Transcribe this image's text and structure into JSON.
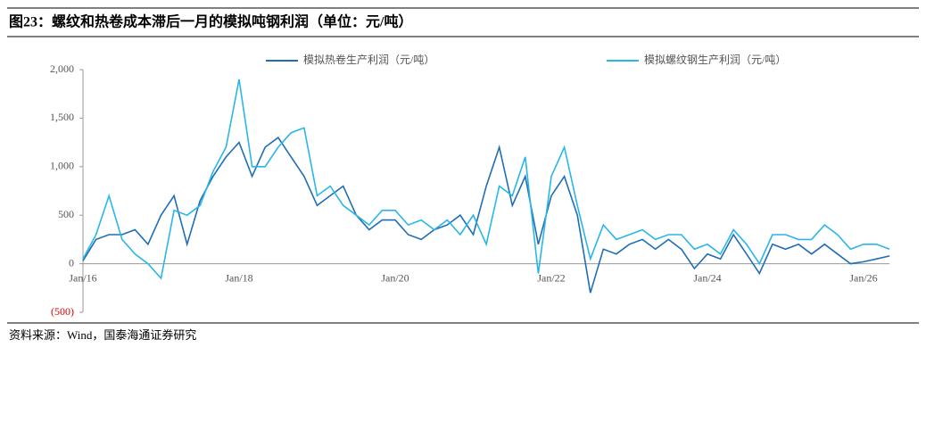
{
  "header": {
    "title": "图23：螺纹和热卷成本滞后一月的模拟吨钢利润（单位：元/吨）"
  },
  "chart_data": {
    "type": "line",
    "categories": [
      "Jan/16",
      null,
      null,
      null,
      null,
      null,
      null,
      null,
      null,
      null,
      null,
      null,
      "Jan/18",
      null,
      null,
      null,
      null,
      null,
      null,
      null,
      null,
      null,
      null,
      null,
      "Jan/20",
      null,
      null,
      null,
      null,
      null,
      null,
      null,
      null,
      null,
      null,
      null,
      "Jan/22",
      null,
      null,
      null,
      null,
      null,
      null,
      null,
      null,
      null,
      null,
      null,
      "Jan/24",
      null,
      null,
      null,
      null,
      null,
      null,
      null,
      null,
      null,
      null,
      null,
      "Jan/26",
      null,
      null
    ],
    "series": [
      {
        "name": "模拟热卷生产利润（元/吨）",
        "color": "#1f6eb5",
        "values": [
          30,
          250,
          300,
          300,
          350,
          200,
          500,
          700,
          200,
          650,
          900,
          1100,
          1250,
          900,
          1200,
          1300,
          1100,
          900,
          600,
          700,
          800,
          500,
          350,
          450,
          450,
          300,
          250,
          350,
          400,
          500,
          300,
          800,
          1200,
          600,
          900,
          200,
          700,
          900,
          500,
          -300,
          150,
          100,
          200,
          250,
          150,
          250,
          150,
          -50,
          100,
          50,
          300,
          100,
          -100,
          200,
          150,
          200,
          100,
          200,
          100,
          0,
          20,
          50,
          80
        ]
      },
      {
        "name": "模拟螺纹钢生产利润（元/吨）",
        "color": "#29b6e8",
        "values": [
          50,
          300,
          700,
          250,
          100,
          0,
          -150,
          550,
          500,
          600,
          950,
          1200,
          1900,
          1000,
          1000,
          1200,
          1350,
          1400,
          700,
          800,
          600,
          500,
          400,
          550,
          550,
          400,
          450,
          350,
          450,
          300,
          500,
          200,
          800,
          700,
          1100,
          -100,
          900,
          1200,
          600,
          50,
          400,
          250,
          300,
          350,
          250,
          300,
          300,
          150,
          200,
          100,
          350,
          200,
          0,
          300,
          300,
          250,
          250,
          400,
          300,
          150,
          200,
          200,
          150
        ]
      }
    ],
    "ylim": [
      -500,
      2000
    ],
    "yticks": [
      {
        "value": -500,
        "label": "(500)"
      },
      0,
      500,
      {
        "value": 1000,
        "label": "1,000"
      },
      {
        "value": 1500,
        "label": "1,500"
      },
      {
        "value": 2000,
        "label": "2,000"
      }
    ],
    "legend": "top"
  },
  "source": "资料来源：Wind，国泰海通证券研究"
}
